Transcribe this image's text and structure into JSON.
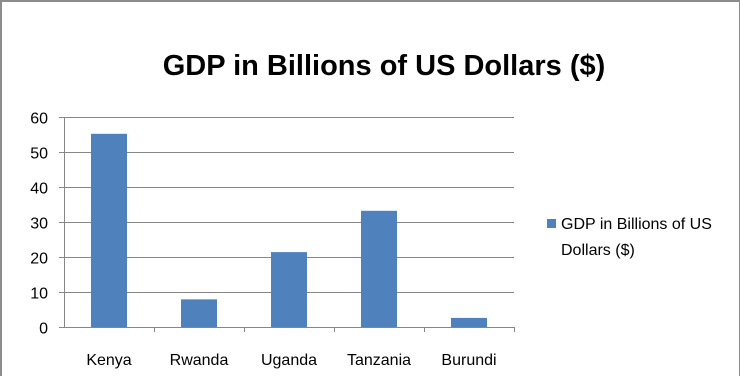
{
  "chart_data": {
    "type": "bar",
    "title": "GDP in Billions of US Dollars  ($)",
    "categories": [
      "Kenya",
      "Rwanda",
      "Uganda",
      "Tanzania",
      "Burundi"
    ],
    "series": [
      {
        "name": "GDP in Billions of US Dollars  ($)",
        "legend_lines": [
          "GDP in Billions of US",
          "Dollars  ($)"
        ],
        "values": [
          55.2,
          7.9,
          21.4,
          33.2,
          2.6
        ],
        "color": "#4f81bd"
      }
    ],
    "ylim": [
      0,
      60
    ],
    "yticks": [
      0,
      10,
      20,
      30,
      40,
      50,
      60
    ],
    "grid": true,
    "legend_position": "right",
    "gridline_color": "#868686"
  }
}
